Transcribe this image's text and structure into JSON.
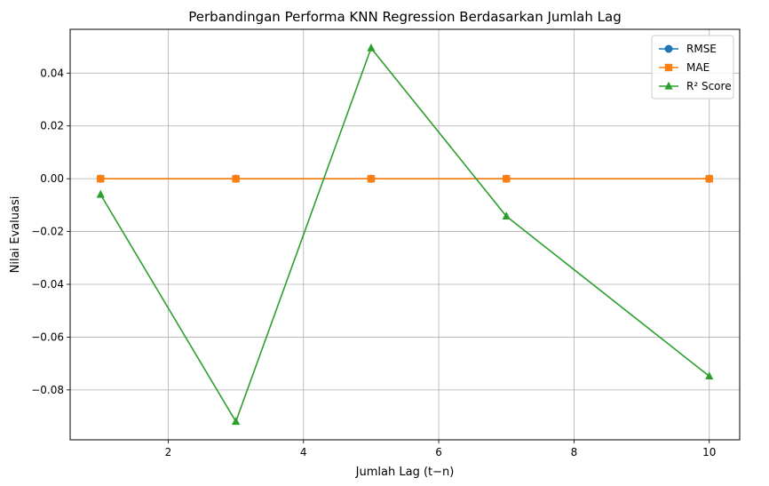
{
  "chart_data": {
    "type": "line",
    "title": "Perbandingan Performa KNN Regression Berdasarkan Jumlah Lag",
    "xlabel": "Jumlah Lag (t−n)",
    "ylabel": "Nilai Evaluasi",
    "x": [
      1,
      3,
      5,
      7,
      10
    ],
    "xlim": [
      0.55,
      10.45
    ],
    "ylim": [
      -0.0989,
      0.0566
    ],
    "xticks": [
      2,
      4,
      6,
      8,
      10
    ],
    "xtick_labels": [
      "2",
      "4",
      "6",
      "8",
      "10"
    ],
    "yticks": [
      -0.08,
      -0.06,
      -0.04,
      -0.02,
      0.0,
      0.02,
      0.04
    ],
    "ytick_labels": [
      "−0.08",
      "−0.06",
      "−0.04",
      "−0.02",
      "0.00",
      "0.02",
      "0.04"
    ],
    "grid": true,
    "legend_position": "top-right",
    "series": [
      {
        "name": "RMSE",
        "values": [
          0.0,
          0.0,
          0.0,
          0.0,
          0.0
        ],
        "color": "#1f77b4",
        "marker": "circle"
      },
      {
        "name": "MAE",
        "values": [
          0.0,
          0.0,
          0.0,
          0.0,
          0.0
        ],
        "color": "#ff7f0e",
        "marker": "square"
      },
      {
        "name": "R² Score",
        "values": [
          -0.006,
          -0.092,
          0.0495,
          -0.0142,
          -0.0748
        ],
        "color": "#2ca02c",
        "marker": "triangle"
      }
    ]
  }
}
